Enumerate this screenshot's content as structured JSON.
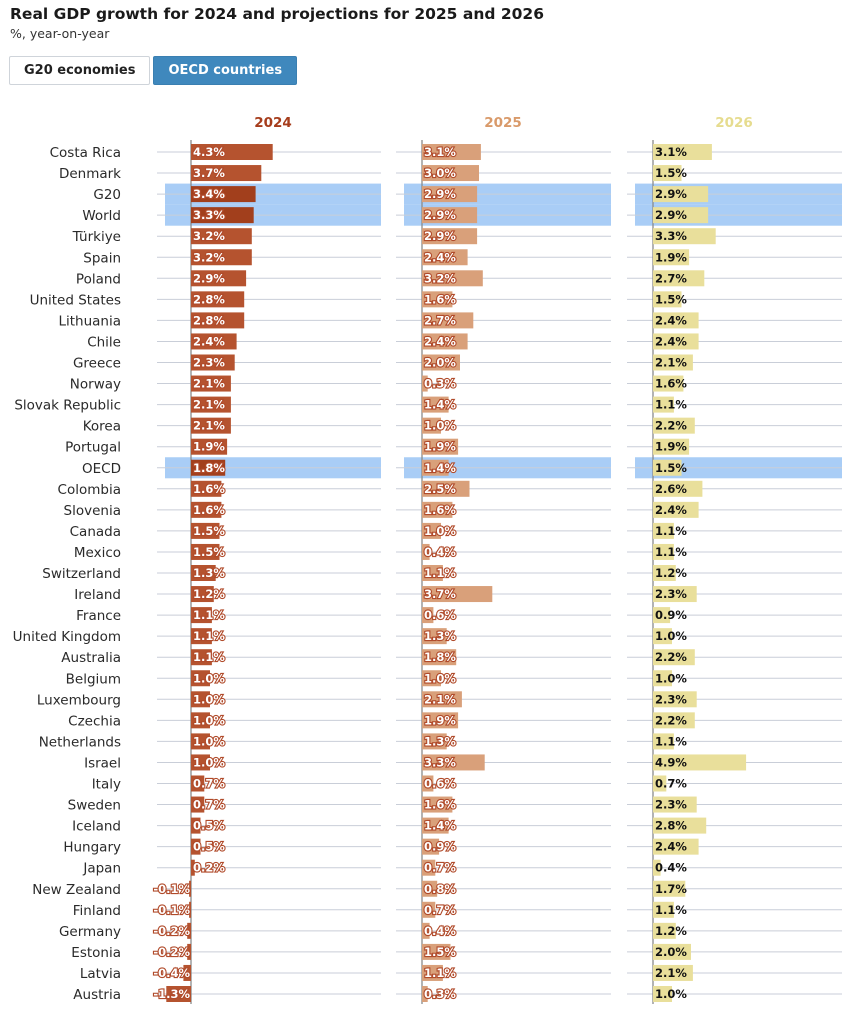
{
  "title": "Real GDP growth for 2024 and projections for 2025 and 2026",
  "subtitle": "%, year-on-year",
  "tabs": [
    {
      "label": "G20 economies",
      "active": false
    },
    {
      "label": "OECD countries",
      "active": true
    }
  ],
  "colors": {
    "y2024": "#b5532f",
    "y2024_highlight": "#a23f1c",
    "y2025": "#d9a07a",
    "y2026": "#e9df9b",
    "header2024": "#a63d1c",
    "header2025": "#d99a6a",
    "header2026": "#e6dc8f",
    "highlight_band": "#a9cdf6",
    "gridline": "#c9ced8"
  },
  "chart_data": {
    "type": "bar",
    "orientation": "horizontal",
    "title": "Real GDP growth for 2024 and projections for 2025 and 2026",
    "subtitle": "%, year-on-year",
    "unit": "%",
    "highlighted_categories": [
      "G20",
      "World",
      "OECD"
    ],
    "categories": [
      "Costa Rica",
      "Denmark",
      "G20",
      "World",
      "Türkiye",
      "Spain",
      "Poland",
      "United States",
      "Lithuania",
      "Chile",
      "Greece",
      "Norway",
      "Slovak Republic",
      "Korea",
      "Portugal",
      "OECD",
      "Colombia",
      "Slovenia",
      "Canada",
      "Mexico",
      "Switzerland",
      "Ireland",
      "France",
      "United Kingdom",
      "Australia",
      "Belgium",
      "Luxembourg",
      "Czechia",
      "Netherlands",
      "Israel",
      "Italy",
      "Sweden",
      "Iceland",
      "Hungary",
      "Japan",
      "New Zealand",
      "Finland",
      "Germany",
      "Estonia",
      "Latvia",
      "Austria"
    ],
    "series": [
      {
        "name": "2024",
        "values": [
          4.3,
          3.7,
          3.4,
          3.3,
          3.2,
          3.2,
          2.9,
          2.8,
          2.8,
          2.4,
          2.3,
          2.1,
          2.1,
          2.1,
          1.9,
          1.8,
          1.6,
          1.6,
          1.5,
          1.5,
          1.3,
          1.2,
          1.1,
          1.1,
          1.1,
          1.0,
          1.0,
          1.0,
          1.0,
          1.0,
          0.7,
          0.7,
          0.5,
          0.5,
          0.2,
          -0.1,
          -0.1,
          -0.2,
          -0.2,
          -0.4,
          -1.3
        ]
      },
      {
        "name": "2025",
        "values": [
          3.1,
          3.0,
          2.9,
          2.9,
          2.9,
          2.4,
          3.2,
          1.6,
          2.7,
          2.4,
          2.0,
          0.3,
          1.4,
          1.0,
          1.9,
          1.4,
          2.5,
          1.6,
          1.0,
          0.4,
          1.1,
          3.7,
          0.6,
          1.3,
          1.8,
          1.0,
          2.1,
          1.9,
          1.3,
          3.3,
          0.6,
          1.6,
          1.4,
          0.9,
          0.7,
          0.8,
          0.7,
          0.4,
          1.5,
          1.1,
          0.3
        ]
      },
      {
        "name": "2026",
        "values": [
          3.1,
          1.5,
          2.9,
          2.9,
          3.3,
          1.9,
          2.7,
          1.5,
          2.4,
          2.4,
          2.1,
          1.6,
          1.1,
          2.2,
          1.9,
          1.5,
          2.6,
          2.4,
          1.1,
          1.1,
          1.2,
          2.3,
          0.9,
          1.0,
          2.2,
          1.0,
          2.3,
          2.2,
          1.1,
          4.9,
          0.7,
          2.3,
          2.8,
          2.4,
          0.4,
          1.7,
          1.1,
          1.2,
          2.0,
          2.1,
          1.0
        ]
      }
    ],
    "labels": {
      "2024": [
        "4.3%",
        "3.7%",
        "3.4%",
        "3.3%",
        "3.2%",
        "3.2%",
        "2.9%",
        "2.8%",
        "2.8%",
        "2.4%",
        "2.3%",
        "2.1%",
        "2.1%",
        "2.1%",
        "1.9%",
        "1.8%",
        "1.6%",
        "1.6%",
        "1.5%",
        "1.5%",
        "1.3%",
        "1.2%",
        "1.1%",
        "1.1%",
        "1.1%",
        "1.0%",
        "1.0%",
        "1.0%",
        "1.0%",
        "1.0%",
        "0.7%",
        "0.7%",
        "0.5%",
        "0.5%",
        "0.2%",
        "-0.1%",
        "-0.1%",
        "-0.2%",
        "-0.2%",
        "-0.4%",
        "-1.3%"
      ],
      "2025": [
        "3.1%",
        "3.0%",
        "2.9%",
        "2.9%",
        "2.9%",
        "2.4%",
        "3.2%",
        "1.6%",
        "2.7%",
        "2.4%",
        "2.0%",
        "0.3%",
        "1.4%",
        "1.0%",
        "1.9%",
        "1.4%",
        "2.5%",
        "1.6%",
        "1.0%",
        "0.4%",
        "1.1%",
        "3.7%",
        "0.6%",
        "1.3%",
        "1.8%",
        "1.0%",
        "2.1%",
        "1.9%",
        "1.3%",
        "3.3%",
        "0.6%",
        "1.6%",
        "1.4%",
        "0.9%",
        "0.7%",
        "0.8%",
        "0.7%",
        "0.4%",
        "1.5%",
        "1.1%",
        "0.3%"
      ],
      "2026": [
        "3.1%",
        "1.5%",
        "2.9%",
        "2.9%",
        "3.3%",
        "1.9%",
        "2.7%",
        "1.5%",
        "2.4%",
        "2.4%",
        "2.1%",
        "1.6%",
        "1.1%",
        "2.2%",
        "1.9%",
        "1.5%",
        "2.6%",
        "2.4%",
        "1.1%",
        "1.1%",
        "1.2%",
        "2.3%",
        "0.9%",
        "1.0%",
        "2.2%",
        "1.0%",
        "2.3%",
        "2.2%",
        "1.1%",
        "4.9%",
        "0.7%",
        "2.3%",
        "2.8%",
        "2.4%",
        "0.4%",
        "1.7%",
        "1.1%",
        "1.2%",
        "2.0%",
        "2.1%",
        "1.0%"
      ]
    },
    "legend": "column headers",
    "grid": true
  }
}
